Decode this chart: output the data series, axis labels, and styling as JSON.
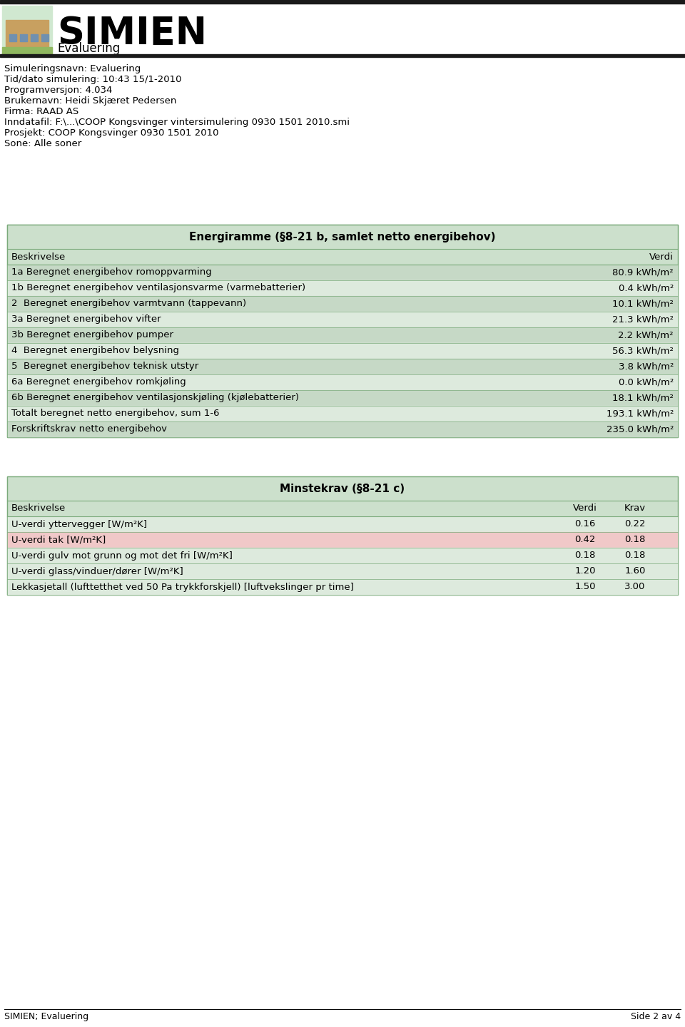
{
  "header_info": [
    "Simuleringsnavn: Evaluering",
    "Tid/dato simulering: 10:43 15/1-2010",
    "Programversjon: 4.034",
    "Brukernavn: Heidi Skjæret Pedersen",
    "Firma: RAAD AS",
    "Inndatafil: F:\\...\\COOP Kongsvinger vintersimulering 0930 1501 2010.smi",
    "Prosjekt: COOP Kongsvinger 0930 1501 2010",
    "Sone: Alle soner"
  ],
  "table1_title": "Energiramme (§8-21 b, samlet netto energibehov)",
  "table1_col1": "Beskrivelse",
  "table1_col2": "Verdi",
  "table1_rows": [
    [
      "1a Beregnet energibehov romoppvarming",
      "80.9 kWh/m²"
    ],
    [
      "1b Beregnet energibehov ventilasjonsvarme (varmebatterier)",
      "0.4 kWh/m²"
    ],
    [
      "2  Beregnet energibehov varmtvann (tappevann)",
      "10.1 kWh/m²"
    ],
    [
      "3a Beregnet energibehov vifter",
      "21.3 kWh/m²"
    ],
    [
      "3b Beregnet energibehov pumper",
      "2.2 kWh/m²"
    ],
    [
      "4  Beregnet energibehov belysning",
      "56.3 kWh/m²"
    ],
    [
      "5  Beregnet energibehov teknisk utstyr",
      "3.8 kWh/m²"
    ],
    [
      "6a Beregnet energibehov romkjøling",
      "0.0 kWh/m²"
    ],
    [
      "6b Beregnet energibehov ventilasjonskjøling (kjølebatterier)",
      "18.1 kWh/m²"
    ],
    [
      "Totalt beregnet netto energibehov, sum 1-6",
      "193.1 kWh/m²"
    ],
    [
      "Forskriftskrav netto energibehov",
      "235.0 kWh/m²"
    ]
  ],
  "table1_row_colors": [
    "#c6d9c6",
    "#ddeadd",
    "#c6d9c6",
    "#ddeadd",
    "#c6d9c6",
    "#ddeadd",
    "#c6d9c6",
    "#ddeadd",
    "#c6d9c6",
    "#ddeadd",
    "#c6d9c6"
  ],
  "table2_title": "Minstekrav (§8-21 c)",
  "table2_col1": "Beskrivelse",
  "table2_col2": "Verdi",
  "table2_col3": "Krav",
  "table2_rows": [
    [
      "U-verdi yttervegger [W/m²K]",
      "0.16",
      "0.22"
    ],
    [
      "U-verdi tak [W/m²K]",
      "0.42",
      "0.18"
    ],
    [
      "U-verdi gulv mot grunn og mot det fri [W/m²K]",
      "0.18",
      "0.18"
    ],
    [
      "U-verdi glass/vinduer/dører [W/m²K]",
      "1.20",
      "1.60"
    ],
    [
      "Lekkasjetall (lufttetthet ved 50 Pa trykkforskjell) [luftvekslinger pr time]",
      "1.50",
      "3.00"
    ]
  ],
  "table2_row_colors": [
    "#ddeadd",
    "#f0c8c8",
    "#ddeadd",
    "#ddeadd",
    "#ddeadd"
  ],
  "footer_left": "SIMIEN; Evaluering",
  "footer_right": "Side 2 av 4",
  "top_bar_color": "#1a1a1a",
  "table1_bg": "#cce0cc",
  "table2_bg": "#cce0cc",
  "border_color": "#7aaa7a",
  "simien_fontsize": 38,
  "evaluering_fontsize": 12,
  "header_fontsize": 9.5,
  "table_fontsize": 9.5,
  "title_fontsize": 11
}
